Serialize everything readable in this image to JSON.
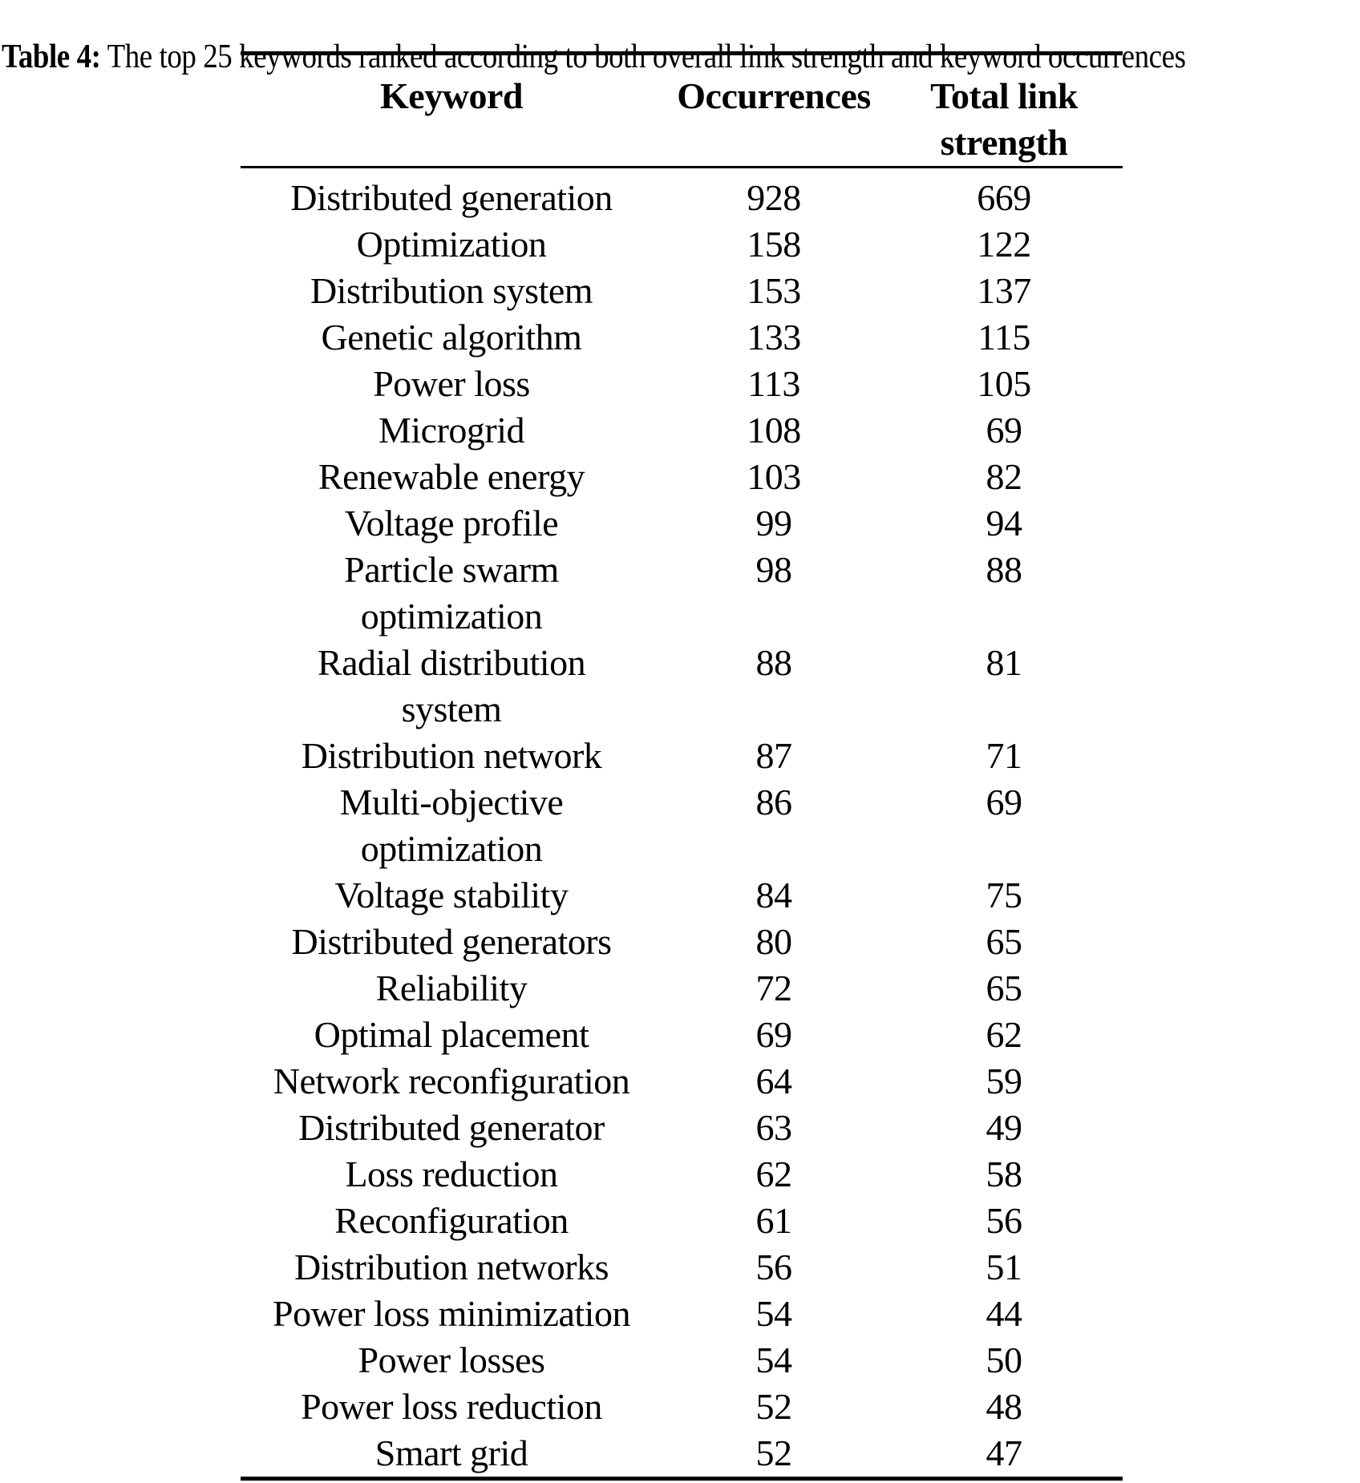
{
  "caption": {
    "label": "Table 4:",
    "text": " The top 25 keywords ranked according to both overall link strength and keyword occurrences"
  },
  "colors": {
    "background": "#ffffff",
    "text": "#000000",
    "rule": "#000000"
  },
  "table": {
    "headers": [
      "Keyword",
      "Occurrences",
      "Total link strength"
    ],
    "rows": [
      {
        "keyword": "Distributed generation",
        "occurrences": 928,
        "total_link_strength": 669
      },
      {
        "keyword": "Optimization",
        "occurrences": 158,
        "total_link_strength": 122
      },
      {
        "keyword": "Distribution system",
        "occurrences": 153,
        "total_link_strength": 137
      },
      {
        "keyword": "Genetic algorithm",
        "occurrences": 133,
        "total_link_strength": 115
      },
      {
        "keyword": "Power loss",
        "occurrences": 113,
        "total_link_strength": 105
      },
      {
        "keyword": "Microgrid",
        "occurrences": 108,
        "total_link_strength": 69
      },
      {
        "keyword": "Renewable energy",
        "occurrences": 103,
        "total_link_strength": 82
      },
      {
        "keyword": "Voltage profile",
        "occurrences": 99,
        "total_link_strength": 94
      },
      {
        "keyword": "Particle swarm optimization",
        "lines": [
          "Particle swarm",
          "optimization"
        ],
        "occurrences": 98,
        "total_link_strength": 88
      },
      {
        "keyword": "Radial distribution system",
        "lines": [
          "Radial distribution",
          "system"
        ],
        "occurrences": 88,
        "total_link_strength": 81
      },
      {
        "keyword": "Distribution network",
        "occurrences": 87,
        "total_link_strength": 71
      },
      {
        "keyword": "Multi-objective optimization",
        "lines": [
          "Multi-objective",
          "optimization"
        ],
        "occurrences": 86,
        "total_link_strength": 69
      },
      {
        "keyword": "Voltage stability",
        "occurrences": 84,
        "total_link_strength": 75
      },
      {
        "keyword": "Distributed generators",
        "occurrences": 80,
        "total_link_strength": 65
      },
      {
        "keyword": "Reliability",
        "occurrences": 72,
        "total_link_strength": 65
      },
      {
        "keyword": "Optimal placement",
        "occurrences": 69,
        "total_link_strength": 62
      },
      {
        "keyword": "Network reconfiguration",
        "occurrences": 64,
        "total_link_strength": 59
      },
      {
        "keyword": "Distributed generator",
        "occurrences": 63,
        "total_link_strength": 49
      },
      {
        "keyword": "Loss reduction",
        "occurrences": 62,
        "total_link_strength": 58
      },
      {
        "keyword": "Reconfiguration",
        "occurrences": 61,
        "total_link_strength": 56
      },
      {
        "keyword": "Distribution networks",
        "occurrences": 56,
        "total_link_strength": 51
      },
      {
        "keyword": "Power loss minimization",
        "occurrences": 54,
        "total_link_strength": 44
      },
      {
        "keyword": "Power losses",
        "occurrences": 54,
        "total_link_strength": 50
      },
      {
        "keyword": "Power loss reduction",
        "occurrences": 52,
        "total_link_strength": 48
      },
      {
        "keyword": "Smart grid",
        "occurrences": 52,
        "total_link_strength": 47
      }
    ]
  }
}
